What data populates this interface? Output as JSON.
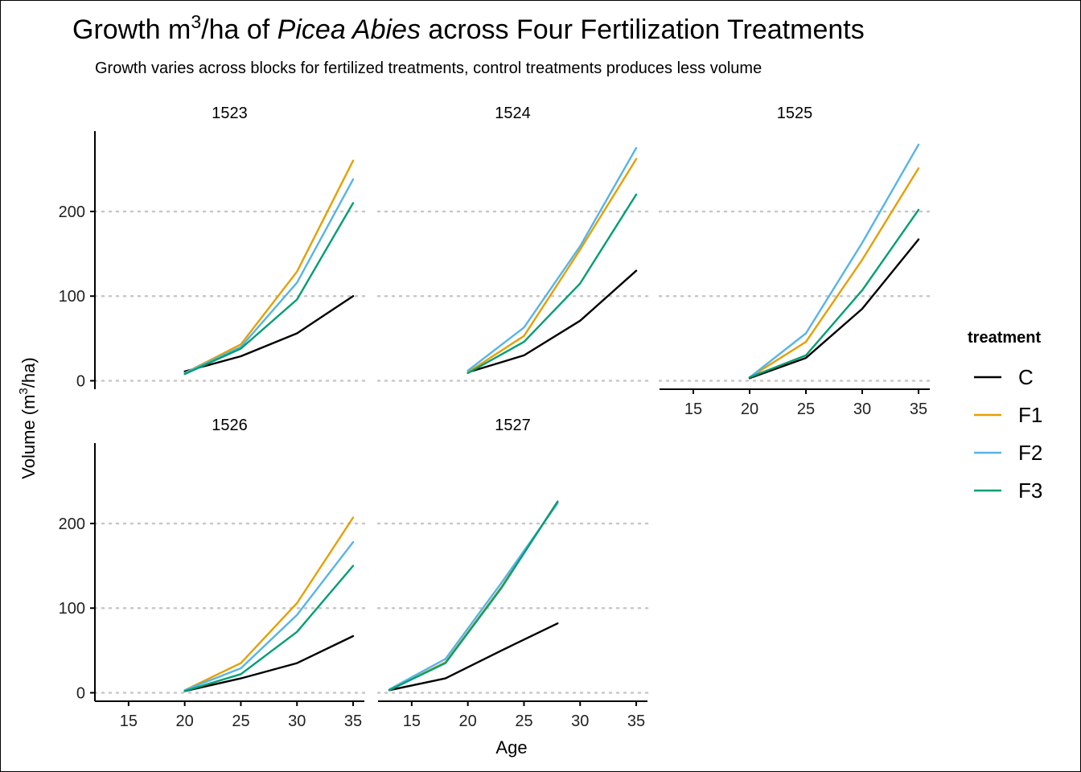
{
  "title": {
    "prefix": "Growth m",
    "superscript": "3",
    "middle": "/ha of ",
    "italic": "Picea Abies",
    "suffix": " across Four Fertilization Treatments"
  },
  "subtitle": "Growth varies across blocks for fertilized treatments, control treatments produces less volume",
  "legend": {
    "title": "treatment"
  },
  "colors": {
    "C": "#000000",
    "F1": "#E69F00",
    "F2": "#56B4E9",
    "F3": "#009E73"
  },
  "chart_data": {
    "type": "line",
    "title": "Growth m3/ha of Picea Abies across Four Fertilization Treatments",
    "subtitle": "Growth varies across blocks for fertilized treatments, control treatments produces less volume",
    "xlabel": "Age",
    "ylabel": "Volume (m3/ha)",
    "xlim": [
      12,
      36
    ],
    "ylim": [
      -10,
      295
    ],
    "x_ticks": [
      15,
      20,
      25,
      30,
      35
    ],
    "y_ticks": [
      0,
      100,
      200
    ],
    "y_grid": true,
    "legend_position": "right",
    "facet_by": "block",
    "facets": [
      {
        "block": "1523",
        "series": [
          {
            "name": "C",
            "x": [
              20,
              25,
              30,
              35
            ],
            "y": [
              11,
              29,
              56,
              100
            ]
          },
          {
            "name": "F1",
            "x": [
              20,
              25,
              30,
              35
            ],
            "y": [
              9,
              43,
              129,
              260
            ]
          },
          {
            "name": "F2",
            "x": [
              20,
              25,
              30,
              35
            ],
            "y": [
              9,
              40,
              116,
              238
            ]
          },
          {
            "name": "F3",
            "x": [
              20,
              25,
              30,
              35
            ],
            "y": [
              8,
              38,
              96,
              210
            ]
          }
        ]
      },
      {
        "block": "1524",
        "series": [
          {
            "name": "C",
            "x": [
              20,
              25,
              30,
              35
            ],
            "y": [
              10,
              30,
              71,
              130
            ]
          },
          {
            "name": "F1",
            "x": [
              20,
              25,
              30,
              35
            ],
            "y": [
              10,
              53,
              155,
              262
            ]
          },
          {
            "name": "F2",
            "x": [
              20,
              25,
              30,
              35
            ],
            "y": [
              12,
              63,
              159,
              275
            ]
          },
          {
            "name": "F3",
            "x": [
              20,
              25,
              30,
              35
            ],
            "y": [
              9,
              46,
              115,
              220
            ]
          }
        ]
      },
      {
        "block": "1525",
        "series": [
          {
            "name": "C",
            "x": [
              20,
              25,
              30,
              35
            ],
            "y": [
              3,
              27,
              85,
              167
            ]
          },
          {
            "name": "F1",
            "x": [
              20,
              25,
              30,
              35
            ],
            "y": [
              4,
              46,
              143,
              251
            ]
          },
          {
            "name": "F2",
            "x": [
              20,
              25,
              30,
              35
            ],
            "y": [
              4,
              56,
              163,
              279
            ]
          },
          {
            "name": "F3",
            "x": [
              20,
              25,
              30,
              35
            ],
            "y": [
              4,
              30,
              107,
              202
            ]
          }
        ]
      },
      {
        "block": "1526",
        "series": [
          {
            "name": "C",
            "x": [
              20,
              25,
              30,
              35
            ],
            "y": [
              2,
              17,
              35,
              67
            ]
          },
          {
            "name": "F1",
            "x": [
              20,
              25,
              30,
              35
            ],
            "y": [
              3,
              35,
              106,
              207
            ]
          },
          {
            "name": "F2",
            "x": [
              20,
              25,
              30,
              35
            ],
            "y": [
              3,
              29,
              92,
              178
            ]
          },
          {
            "name": "F3",
            "x": [
              20,
              25,
              30,
              35
            ],
            "y": [
              2,
              22,
              72,
              150
            ]
          }
        ]
      },
      {
        "block": "1527",
        "series": [
          {
            "name": "C",
            "x": [
              13,
              18,
              23,
              28
            ],
            "y": [
              3,
              17,
              50,
              82
            ]
          },
          {
            "name": "F1",
            "x": [
              13,
              18,
              23,
              28
            ],
            "y": [
              3,
              36,
              125,
              226
            ]
          },
          {
            "name": "F2",
            "x": [
              13,
              18,
              23,
              28
            ],
            "y": [
              4,
              40,
              130,
              224
            ]
          },
          {
            "name": "F3",
            "x": [
              13,
              18,
              23,
              28
            ],
            "y": [
              3,
              35,
              124,
              226
            ]
          }
        ]
      }
    ]
  }
}
